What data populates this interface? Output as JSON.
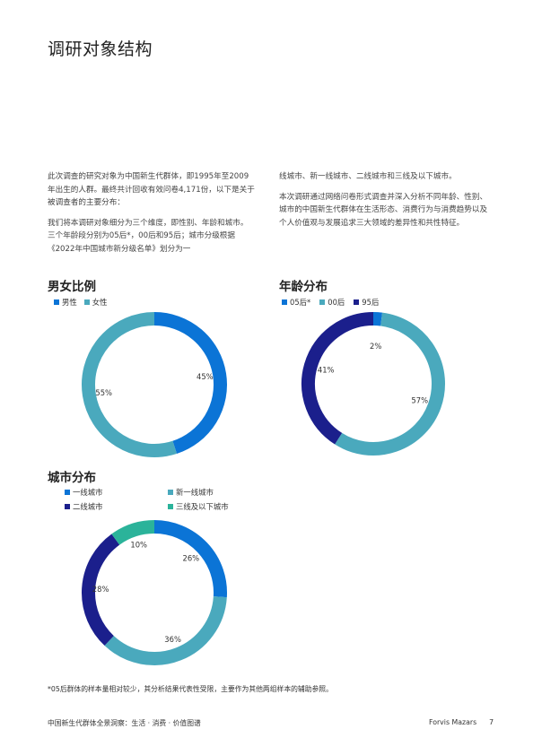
{
  "page": {
    "title": "调研对象结构",
    "left_paragraphs": [
      "此次调查的研究对象为中国新生代群体，即1995年至2009年出生的人群。最终共计回收有效问卷4,171份，以下是关于被调查者的主要分布：",
      "我们将本调研对象细分为三个维度，即性别、年龄和城市。三个年龄段分别为05后*，00后和95后；城市分级根据《2022年中国城市新分级名单》划分为一"
    ],
    "right_paragraphs": [
      "线城市、新一线城市、二线城市和三线及以下城市。",
      "本次调研通过网络问卷形式调查并深入分析不同年龄、性别、城市的中国新生代群体在生活形态、消费行为与消费趋势以及个人价值观与发展追求三大领域的差异性和共性特征。"
    ],
    "footnote": "*05后群体的样本量相对较少，其分析结果代表性受限，主要作为其他两组样本的辅助参照。",
    "footer": {
      "left": "中国新生代群体全景洞察：生活 · 消费 · 价值图谱",
      "brand": "Forvis Mazars",
      "page_number": "7"
    }
  },
  "colors": {
    "blue": "#0b74d6",
    "teal": "#4aa9bd",
    "navy": "#1b1f8c",
    "green": "#2bb39a"
  },
  "chart_data": [
    {
      "type": "pie",
      "title": "男女比例",
      "categories": [
        "男性",
        "女性"
      ],
      "values": [
        45,
        55
      ],
      "labels": [
        "45%",
        "55%"
      ],
      "colors": [
        "#0b74d6",
        "#4aa9bd"
      ],
      "legend": "top-left"
    },
    {
      "type": "pie",
      "title": "年龄分布",
      "categories": [
        "05后*",
        "00后",
        "95后"
      ],
      "values": [
        2,
        57,
        41
      ],
      "labels": [
        "2%",
        "57%",
        "41%"
      ],
      "colors": [
        "#0b74d6",
        "#4aa9bd",
        "#1b1f8c"
      ],
      "legend": "top-left"
    },
    {
      "type": "pie",
      "title": "城市分布",
      "categories": [
        "一线城市",
        "新一线城市",
        "二线城市",
        "三线及以下城市"
      ],
      "values": [
        26,
        36,
        28,
        10
      ],
      "labels": [
        "26%",
        "36%",
        "28%",
        "10%"
      ],
      "colors": [
        "#0b74d6",
        "#4aa9bd",
        "#1b1f8c",
        "#2bb39a"
      ],
      "legend": "top-left"
    }
  ]
}
